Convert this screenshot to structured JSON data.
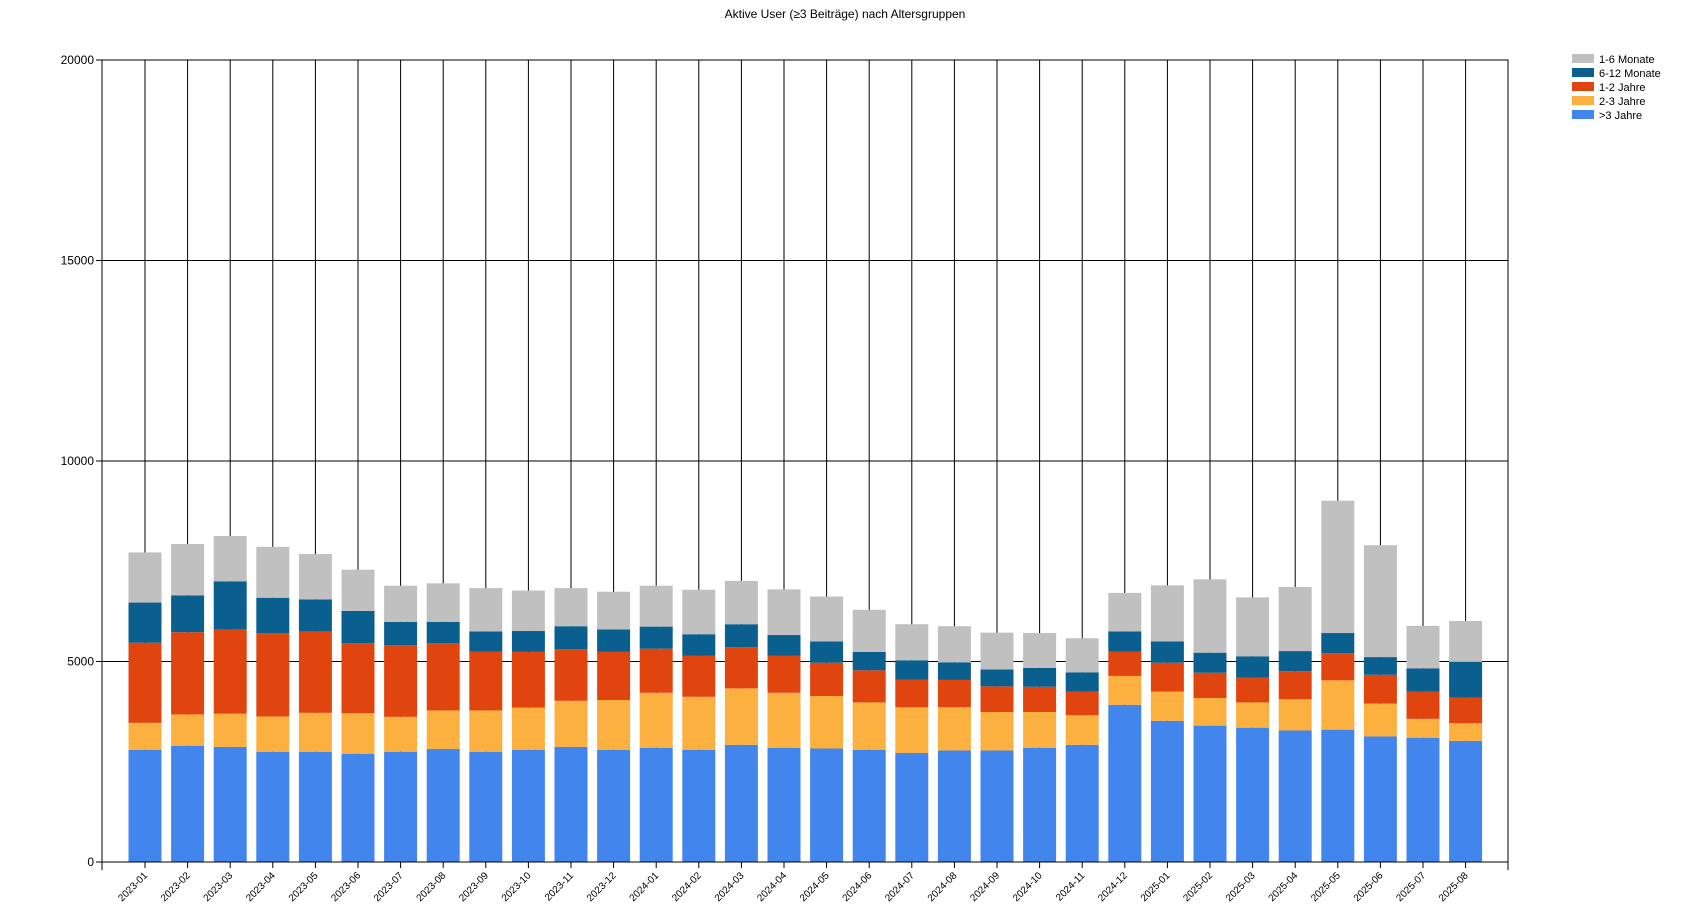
{
  "chart_data": {
    "type": "bar",
    "stacked": true,
    "title": "Aktive User (≥3 Beiträge) nach Altersgruppen",
    "xlabel": "",
    "ylabel": "",
    "ylim": [
      0,
      20000
    ],
    "yticks": [
      0,
      5000,
      10000,
      15000,
      20000
    ],
    "grid": "vertical and horizontal",
    "legend_position": "top-right",
    "categories": [
      "2023-01",
      "2023-02",
      "2023-03",
      "2023-04",
      "2023-05",
      "2023-06",
      "2023-07",
      "2023-08",
      "2023-09",
      "2023-10",
      "2023-11",
      "2023-12",
      "2024-01",
      "2024-02",
      "2024-03",
      "2024-04",
      "2024-05",
      "2024-06",
      "2024-07",
      "2024-08",
      "2024-09",
      "2024-10",
      "2024-11",
      "2024-12",
      "2025-01",
      "2025-02",
      "2025-03",
      "2025-04",
      "2025-05",
      "2025-06",
      "2025-07",
      "2025-08"
    ],
    "series": [
      {
        "name": ">3 Jahre",
        "color": "#4286ed",
        "values": [
          2800,
          2900,
          2870,
          2750,
          2750,
          2700,
          2750,
          2820,
          2750,
          2800,
          2870,
          2800,
          2850,
          2800,
          2920,
          2850,
          2830,
          2800,
          2720,
          2780,
          2780,
          2850,
          2920,
          3920,
          3520,
          3400,
          3350,
          3280,
          3300,
          3130,
          3100,
          3020
        ]
      },
      {
        "name": "2-3 Jahre",
        "color": "#fbb040",
        "values": [
          670,
          780,
          830,
          880,
          970,
          1010,
          870,
          960,
          1030,
          1050,
          1150,
          1240,
          1370,
          1320,
          1410,
          1370,
          1310,
          1180,
          1140,
          1080,
          960,
          890,
          740,
          720,
          730,
          690,
          630,
          780,
          1230,
          820,
          470,
          440
        ]
      },
      {
        "name": "1-2 Jahre",
        "color": "#e04510",
        "values": [
          2000,
          2050,
          2100,
          2080,
          2030,
          1750,
          1790,
          1680,
          1470,
          1390,
          1290,
          1200,
          1100,
          1020,
          1030,
          920,
          830,
          800,
          690,
          680,
          640,
          630,
          590,
          610,
          720,
          630,
          620,
          700,
          680,
          720,
          680,
          640
        ]
      },
      {
        "name": "6-12 Monate",
        "color": "#0a5f8e",
        "values": [
          1000,
          920,
          1200,
          880,
          800,
          800,
          580,
          530,
          500,
          520,
          570,
          560,
          550,
          540,
          570,
          520,
          530,
          460,
          480,
          440,
          420,
          470,
          480,
          500,
          530,
          500,
          530,
          500,
          500,
          440,
          580,
          890
        ]
      },
      {
        "name": "1-6 Monate",
        "color": "#c0c0c0",
        "values": [
          1250,
          1280,
          1130,
          1270,
          1130,
          1030,
          900,
          960,
          1080,
          1010,
          950,
          940,
          1020,
          1110,
          1080,
          1140,
          1120,
          1050,
          900,
          900,
          920,
          870,
          850,
          960,
          1400,
          1830,
          1470,
          1600,
          3300,
          2790,
          1060,
          1020
        ]
      }
    ],
    "legend_order": [
      "1-6 Monate",
      "6-12 Monate",
      "1-2 Jahre",
      "2-3 Jahre",
      ">3 Jahre"
    ]
  }
}
